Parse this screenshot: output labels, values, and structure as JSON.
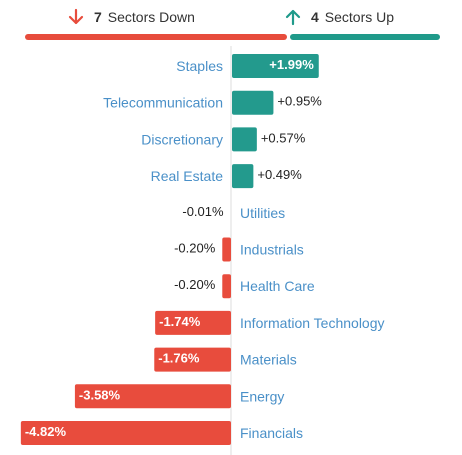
{
  "header": {
    "down": {
      "count": "7",
      "label": "Sectors Down",
      "color": "#e74c3c",
      "icon": "arrow-down-icon"
    },
    "up": {
      "count": "4",
      "label": "Sectors Up",
      "color": "#1f9a8a",
      "icon": "arrow-up-icon"
    }
  },
  "colors": {
    "positive": "#239a8d",
    "negative": "#e84c3d",
    "category_label": "#4a90c8",
    "value_label": "#222222",
    "axis": "#dddddd"
  },
  "chart_data": {
    "type": "bar",
    "orientation": "horizontal",
    "title": "",
    "xlabel": "",
    "ylabel": "",
    "xlim": [
      -4.82,
      1.99
    ],
    "grid": false,
    "categories": [
      "Staples",
      "Telecommunication",
      "Discretionary",
      "Real Estate",
      "Utilities",
      "Industrials",
      "Health Care",
      "Information Technology",
      "Materials",
      "Energy",
      "Financials"
    ],
    "values": [
      1.99,
      0.95,
      0.57,
      0.49,
      -0.01,
      -0.2,
      -0.2,
      -1.74,
      -1.76,
      -3.58,
      -4.82
    ],
    "labels": [
      "+1.99%",
      "+0.95%",
      "+0.57%",
      "+0.49%",
      "-0.01%",
      "-0.20%",
      "-0.20%",
      "-1.74%",
      "-1.76%",
      "-3.58%",
      "-4.82%"
    ]
  }
}
